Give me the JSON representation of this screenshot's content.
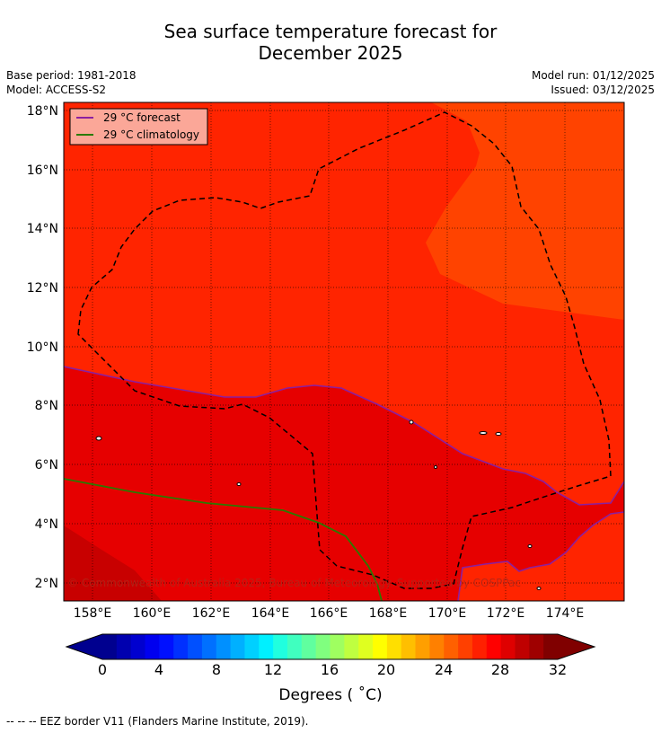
{
  "title_line1": "Sea surface temperature forecast for",
  "title_line2": "December 2025",
  "base_period": "Base period: 1981-2018",
  "model": "Model: ACCESS-S2",
  "model_run": "Model run: 01/12/2025",
  "issued": "Issued: 03/12/2025",
  "legend": {
    "forecast": "29 °C  forecast",
    "climatology": "29 °C  climatology",
    "forecast_color": "#8b1fa0",
    "climatology_color": "#2a7a00"
  },
  "lat_labels": [
    "18°N",
    "16°N",
    "14°N",
    "12°N",
    "10°N",
    "8°N",
    "6°N",
    "4°N",
    "2°N"
  ],
  "lat_values": [
    18,
    16,
    14,
    12,
    10,
    8,
    6,
    4,
    2
  ],
  "lon_labels": [
    "158°E",
    "160°E",
    "162°E",
    "164°E",
    "166°E",
    "168°E",
    "170°E",
    "172°E",
    "174°E"
  ],
  "lon_values": [
    158,
    160,
    162,
    164,
    166,
    168,
    170,
    172,
    174
  ],
  "copyright": "© Commonwealth of Australia 2025, Bureau of Meteorology. Supported by COSPPac",
  "colorbar": {
    "ticks": [
      "0",
      "4",
      "8",
      "12",
      "16",
      "20",
      "24",
      "28",
      "32"
    ],
    "label": "Degrees ( ˚C)"
  },
  "footnote": "--  --  -- EEZ border V11 (Flanders Marine Institute, 2019).",
  "chart_data": {
    "type": "map",
    "variable": "Sea surface temperature forecast",
    "lon_range": [
      157,
      176
    ],
    "lat_range": [
      1.4,
      18.3
    ],
    "colorbar_range": [
      0,
      32
    ]
  }
}
